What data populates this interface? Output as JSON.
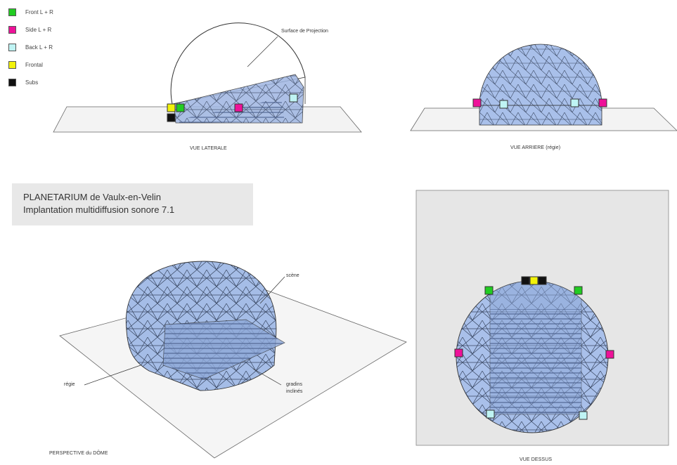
{
  "legend": [
    {
      "label": "Front L + R",
      "color": "#22cc22",
      "icon": "green-square"
    },
    {
      "label": "Side L + R",
      "color": "#ee1199",
      "icon": "magenta-square"
    },
    {
      "label": "Back L + R",
      "color": "#bff4f4",
      "icon": "cyan-square"
    },
    {
      "label": "Frontal",
      "color": "#f2f20a",
      "icon": "yellow-square"
    },
    {
      "label": "Subs",
      "color": "#111111",
      "icon": "black-square"
    }
  ],
  "lateral": {
    "caption": "VUE LATERALE",
    "projection_label": "Surface de Projection"
  },
  "rear": {
    "caption": "VUE ARRIERE (régie)"
  },
  "title": {
    "line1": "PLANETARIUM de Vaulx-en-Velin",
    "line2": "Implantation multidiffusion sonore 7.1"
  },
  "perspective": {
    "caption": "PERSPECTIVE du DÔME",
    "scene_label": "scène",
    "regie_label": "régie",
    "gradins_label_1": "gradins",
    "gradins_label_2": "inclinés"
  },
  "top": {
    "caption": "VUE DESSUS"
  },
  "colors": {
    "dome_fill": "#a9bfe6",
    "dome_dark": "#6f8cc4",
    "floor_fill": "#f2f2f2",
    "panel_bg": "#e6e6e6"
  }
}
